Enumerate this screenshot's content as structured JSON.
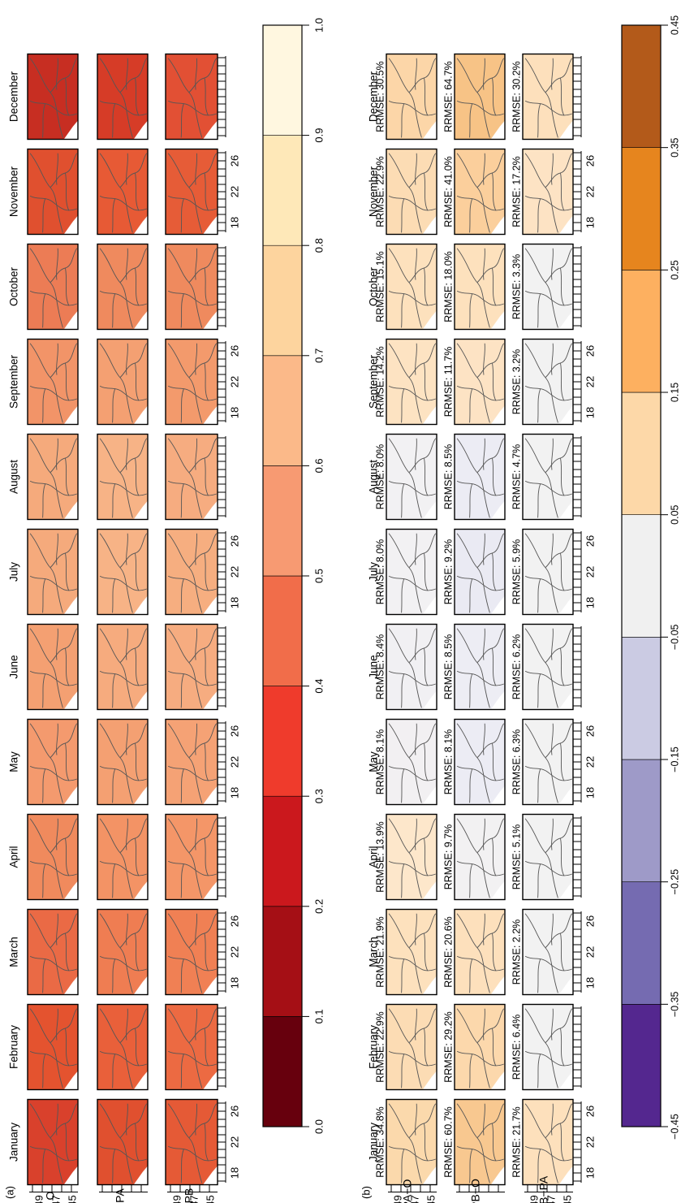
{
  "panels": [
    {
      "label": "(a)",
      "rows": [
        "O",
        "PA",
        "PB"
      ],
      "colorbar": {
        "ticks": [
          "0.0",
          "0.1",
          "0.2",
          "0.3",
          "0.4",
          "0.5",
          "0.6",
          "0.7",
          "0.8",
          "0.9",
          "1.0"
        ],
        "colors": [
          "#67000d",
          "#a50f15",
          "#cb181d",
          "#ef3b2c",
          "#f16d4a",
          "#f79a72",
          "#fbb989",
          "#fdd49e",
          "#fee8b8",
          "#fff7e0"
        ]
      }
    },
    {
      "label": "(b)",
      "rows": [
        "PA−O",
        "PB−O",
        "PB−PA"
      ],
      "colorbar": {
        "ticks": [
          "−0.45",
          "−0.35",
          "−0.25",
          "−0.15",
          "−0.05",
          "0.05",
          "0.15",
          "0.25",
          "0.35",
          "0.45"
        ],
        "colors": [
          "#54278f",
          "#756bb1",
          "#9e9ac8",
          "#cbcbe3",
          "#f0f0f0",
          "#fdd8a8",
          "#fdb060",
          "#e6851e",
          "#b35a1a"
        ]
      }
    }
  ],
  "months": [
    "January",
    "February",
    "March",
    "April",
    "May",
    "June",
    "July",
    "August",
    "September",
    "October",
    "November",
    "December"
  ],
  "lat_ticks": [
    "49",
    "47",
    "45"
  ],
  "lon_ticks": [
    "18",
    "22",
    "26"
  ],
  "rrmse": {
    "PA−O": [
      "RRMSE: 34.8%",
      "RRMSE: 22.9%",
      "RRMSE: 21.9%",
      "RRMSE: 13.9%",
      "RRMSE: 8.1%",
      "RRMSE: 8.4%",
      "RRMSE: 8.0%",
      "RRMSE: 8.0%",
      "RRMSE: 14.2%",
      "RRMSE: 15.1%",
      "RRMSE: 22.9%",
      "RRMSE: 30.5%"
    ],
    "PB−O": [
      "RRMSE: 60.7%",
      "RRMSE: 29.2%",
      "RRMSE: 20.6%",
      "RRMSE: 9.7%",
      "RRMSE: 8.1%",
      "RRMSE: 8.5%",
      "RRMSE: 9.2%",
      "RRMSE: 8.5%",
      "RRMSE: 11.7%",
      "RRMSE: 18.0%",
      "RRMSE: 41.0%",
      "RRMSE: 64.7%"
    ],
    "PB−PA": [
      "RRMSE: 21.7%",
      "RRMSE: 6.4%",
      "RRMSE: 2.2%",
      "RRMSE: 5.1%",
      "RRMSE: 6.3%",
      "RRMSE: 6.2%",
      "RRMSE: 5.9%",
      "RRMSE: 4.7%",
      "RRMSE: 3.2%",
      "RRMSE: 3.3%",
      "RRMSE: 17.2%",
      "RRMSE: 30.2%"
    ]
  },
  "map_fill": {
    "O": [
      "#d9412c",
      "#e4532f",
      "#ea6a45",
      "#f08a5d",
      "#f49a6e",
      "#f4a072",
      "#f5aa7c",
      "#f5aa7c",
      "#f29468",
      "#ec7c55",
      "#e0502f",
      "#c72e22"
    ],
    "PA": [
      "#e0502f",
      "#e9603a",
      "#ef7d52",
      "#f39365",
      "#f4a072",
      "#f6ab7e",
      "#f7b386",
      "#f7b386",
      "#f4a072",
      "#ef8a5e",
      "#e75a35",
      "#d63c27"
    ],
    "PB": [
      "#e55a36",
      "#ec6a42",
      "#f08054",
      "#f49668",
      "#f5a275",
      "#f6ac80",
      "#f6ae80",
      "#f6ac80",
      "#f39a6c",
      "#ef8a5e",
      "#e65c37",
      "#e25034"
    ],
    "PA−O": [
      "#fbd9ac",
      "#fcdcb4",
      "#fde1bd",
      "#fde7cb",
      "#f2f0f2",
      "#f1f0f3",
      "#f2f1f3",
      "#f2f1f3",
      "#fde3c2",
      "#fde1bd",
      "#fcdcb4",
      "#fcd6a8"
    ],
    "PB−O": [
      "#f8c890",
      "#fcd8ac",
      "#fde0bc",
      "#f2f1f2",
      "#ececf4",
      "#ededf4",
      "#eaeaf3",
      "#ececf4",
      "#fde3c4",
      "#fde1bd",
      "#fbcf9c",
      "#f7c386"
    ],
    "PB−PA": [
      "#fde0bc",
      "#f2f2f2",
      "#f2f2f2",
      "#f2f2f2",
      "#f2f2f2",
      "#f2f2f2",
      "#f2f2f2",
      "#f2f2f2",
      "#f2f2f2",
      "#f2f2f2",
      "#fde3c4",
      "#fde0bc"
    ]
  }
}
